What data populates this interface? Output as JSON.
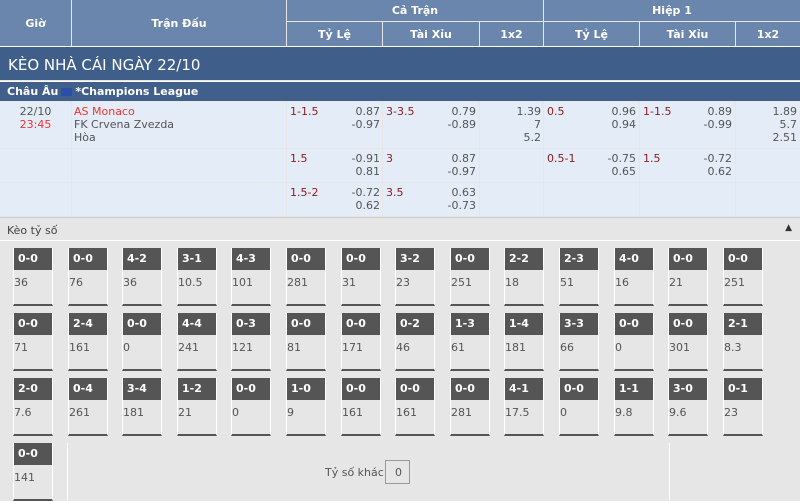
{
  "header": {
    "time": "Giờ",
    "match": "Trận Đấu",
    "full": "Cả Trận",
    "half": "Hiệp 1",
    "handicap": "Tỷ Lệ",
    "overunder": "Tài Xỉu",
    "x12": "1x2",
    "handicap2": "Tỷ Lệ",
    "overunder2": "Tài Xỉu",
    "x12b": "1x2"
  },
  "title": "KÈO NHÀ CÁI NGÀY 22/10",
  "league": {
    "region": "Châu Âu",
    "name": "*Champions League"
  },
  "match": {
    "date": "22/10",
    "time": "23:45",
    "home": "AS Monaco",
    "away": "FK Crvena Zvezda",
    "draw": "Hòa"
  },
  "rows": [
    {
      "hcp": "1-1.5",
      "hcp_a": "0.87",
      "hcp_b": "-0.97",
      "ou": "3-3.5",
      "ou_a": "0.79",
      "ou_b": "-0.89",
      "x1": "1.39",
      "x2": "7",
      "x3": "5.2",
      "h_hcp": "0.5",
      "h_hcp_a": "0.96",
      "h_hcp_b": "0.94",
      "h_ou": "1-1.5",
      "h_ou_a": "0.89",
      "h_ou_b": "-0.99",
      "h1": "1.89",
      "h2": "5.7",
      "h3": "2.51"
    },
    {
      "hcp": "1.5",
      "hcp_a": "-0.91",
      "hcp_b": "0.81",
      "ou": "3",
      "ou_a": "0.87",
      "ou_b": "-0.97",
      "h_hcp": "0.5-1",
      "h_hcp_a": "-0.75",
      "h_hcp_b": "0.65",
      "h_ou": "1.5",
      "h_ou_a": "-0.72",
      "h_ou_b": "0.62"
    },
    {
      "hcp": "1.5-2",
      "hcp_a": "-0.72",
      "hcp_b": "0.62",
      "ou": "3.5",
      "ou_a": "0.63",
      "ou_b": "-0.73"
    }
  ],
  "score_section": {
    "label": "Kèo tỷ số",
    "collapse_icon": "triangle-up-icon",
    "other_label": "Tỷ số khác",
    "other_value": "0"
  },
  "scores": [
    [
      "0-0",
      "36"
    ],
    [
      "0-0",
      "76"
    ],
    [
      "4-2",
      "36"
    ],
    [
      "3-1",
      "10.5"
    ],
    [
      "4-3",
      "101"
    ],
    [
      "0-0",
      "281"
    ],
    [
      "0-0",
      "31"
    ],
    [
      "3-2",
      "23"
    ],
    [
      "0-0",
      "251"
    ],
    [
      "2-2",
      "18"
    ],
    [
      "2-3",
      "51"
    ],
    [
      "4-0",
      "16"
    ],
    [
      "0-0",
      "21"
    ],
    [
      "0-0",
      "251"
    ],
    [
      "0-0",
      "71"
    ],
    [
      "2-4",
      "161"
    ],
    [
      "0-0",
      "0"
    ],
    [
      "4-4",
      "241"
    ],
    [
      "0-3",
      "121"
    ],
    [
      "0-0",
      "81"
    ],
    [
      "0-0",
      "171"
    ],
    [
      "0-2",
      "46"
    ],
    [
      "1-3",
      "61"
    ],
    [
      "1-4",
      "181"
    ],
    [
      "3-3",
      "66"
    ],
    [
      "0-0",
      "0"
    ],
    [
      "0-0",
      "301"
    ],
    [
      "2-1",
      "8.3"
    ],
    [
      "2-0",
      "7.6"
    ],
    [
      "0-4",
      "261"
    ],
    [
      "3-4",
      "181"
    ],
    [
      "1-2",
      "21"
    ],
    [
      "0-0",
      "0"
    ],
    [
      "1-0",
      "9"
    ],
    [
      "0-0",
      "161"
    ],
    [
      "0-0",
      "161"
    ],
    [
      "0-0",
      "281"
    ],
    [
      "4-1",
      "17.5"
    ],
    [
      "0-0",
      "0"
    ],
    [
      "1-1",
      "9.8"
    ],
    [
      "3-0",
      "9.6"
    ],
    [
      "0-1",
      "23"
    ],
    [
      "0-0",
      "141"
    ]
  ]
}
